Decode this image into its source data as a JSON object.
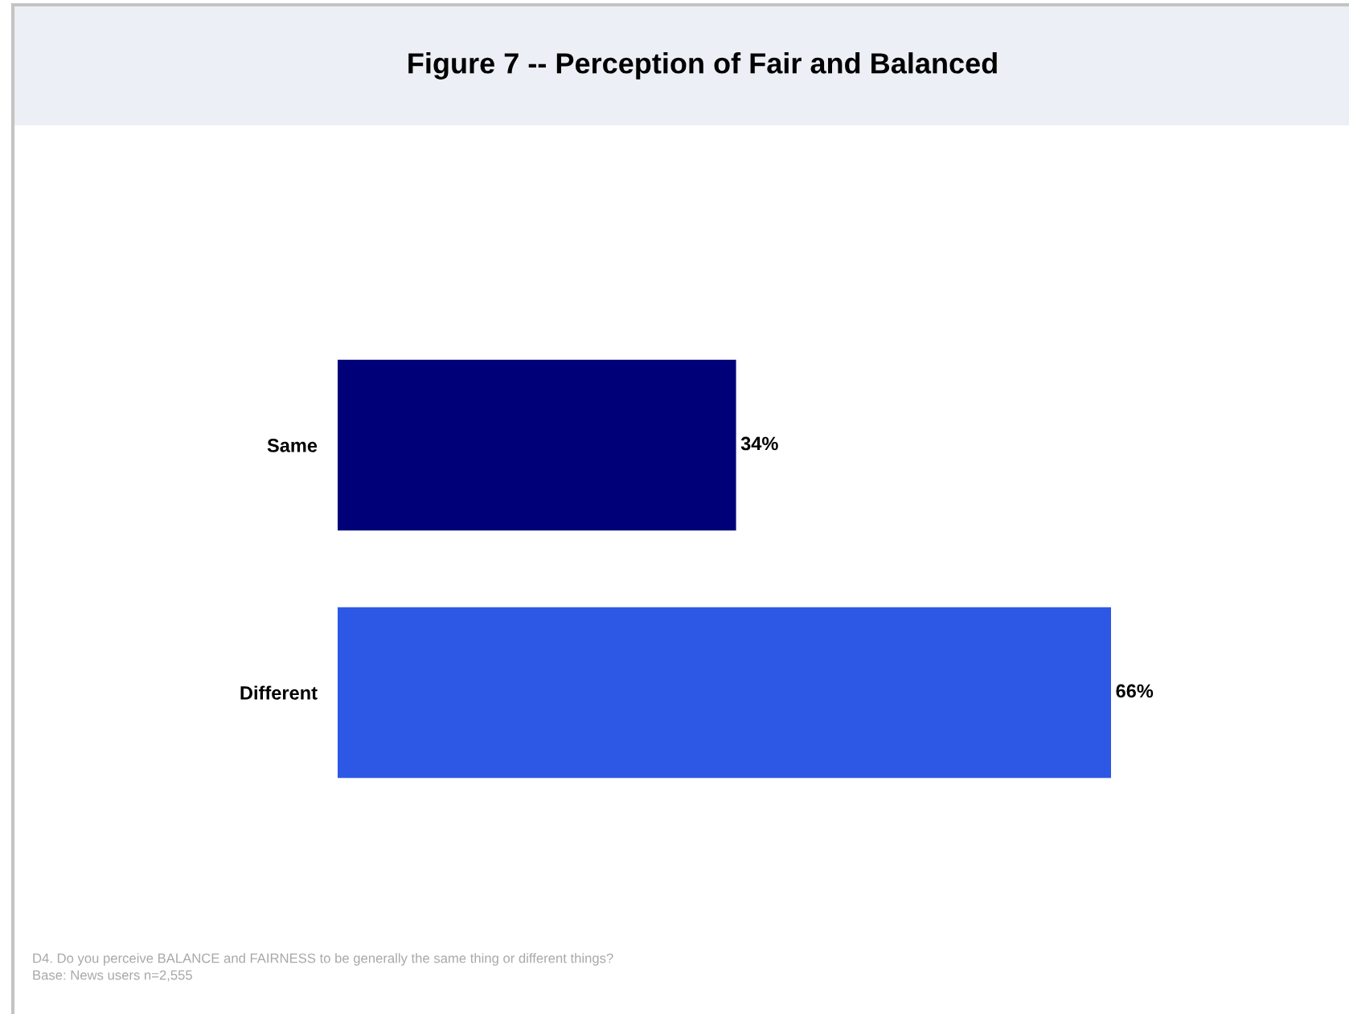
{
  "chart_data": {
    "type": "bar",
    "orientation": "horizontal",
    "title": "Figure 7 -- Perception of Fair and Balanced",
    "categories": [
      "Same",
      "Different"
    ],
    "values": [
      34,
      66
    ],
    "colors": [
      "#000078",
      "#2d58e6"
    ],
    "value_labels": [
      "34%",
      "66%"
    ],
    "tick_labels": "y",
    "annotations": [
      "D4. Do you perceive BALANCE and FAIRNESS to be generally the same thing or different things?",
      "Base: News users n=2,555"
    ]
  }
}
